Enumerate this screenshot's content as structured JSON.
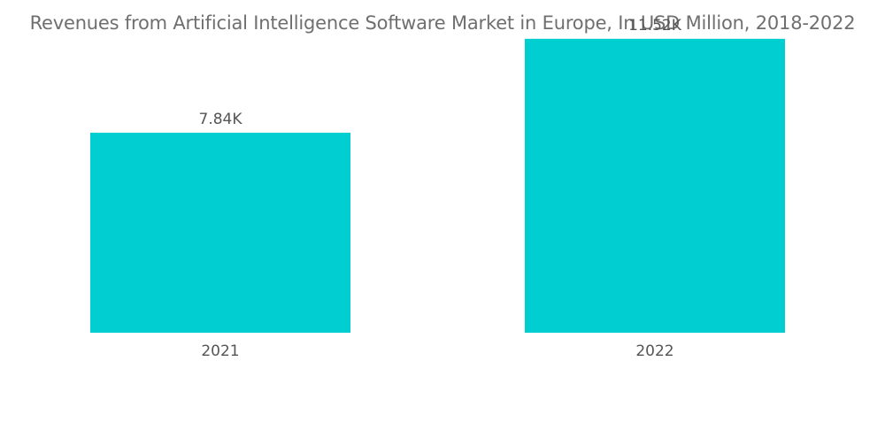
{
  "chart_data": {
    "type": "bar",
    "title": "Revenues from Artificial Intelligence Software Market in Europe, In USD Million, 2018-2022",
    "categories": [
      "2021",
      "2022"
    ],
    "values": [
      7840,
      11520
    ],
    "data_labels": [
      "7.84K",
      "11.52K"
    ],
    "xlabel": "",
    "ylabel": "",
    "ylim": [
      0,
      12000
    ],
    "grid": false,
    "legend": "none",
    "bar_color": "#00ced1"
  }
}
